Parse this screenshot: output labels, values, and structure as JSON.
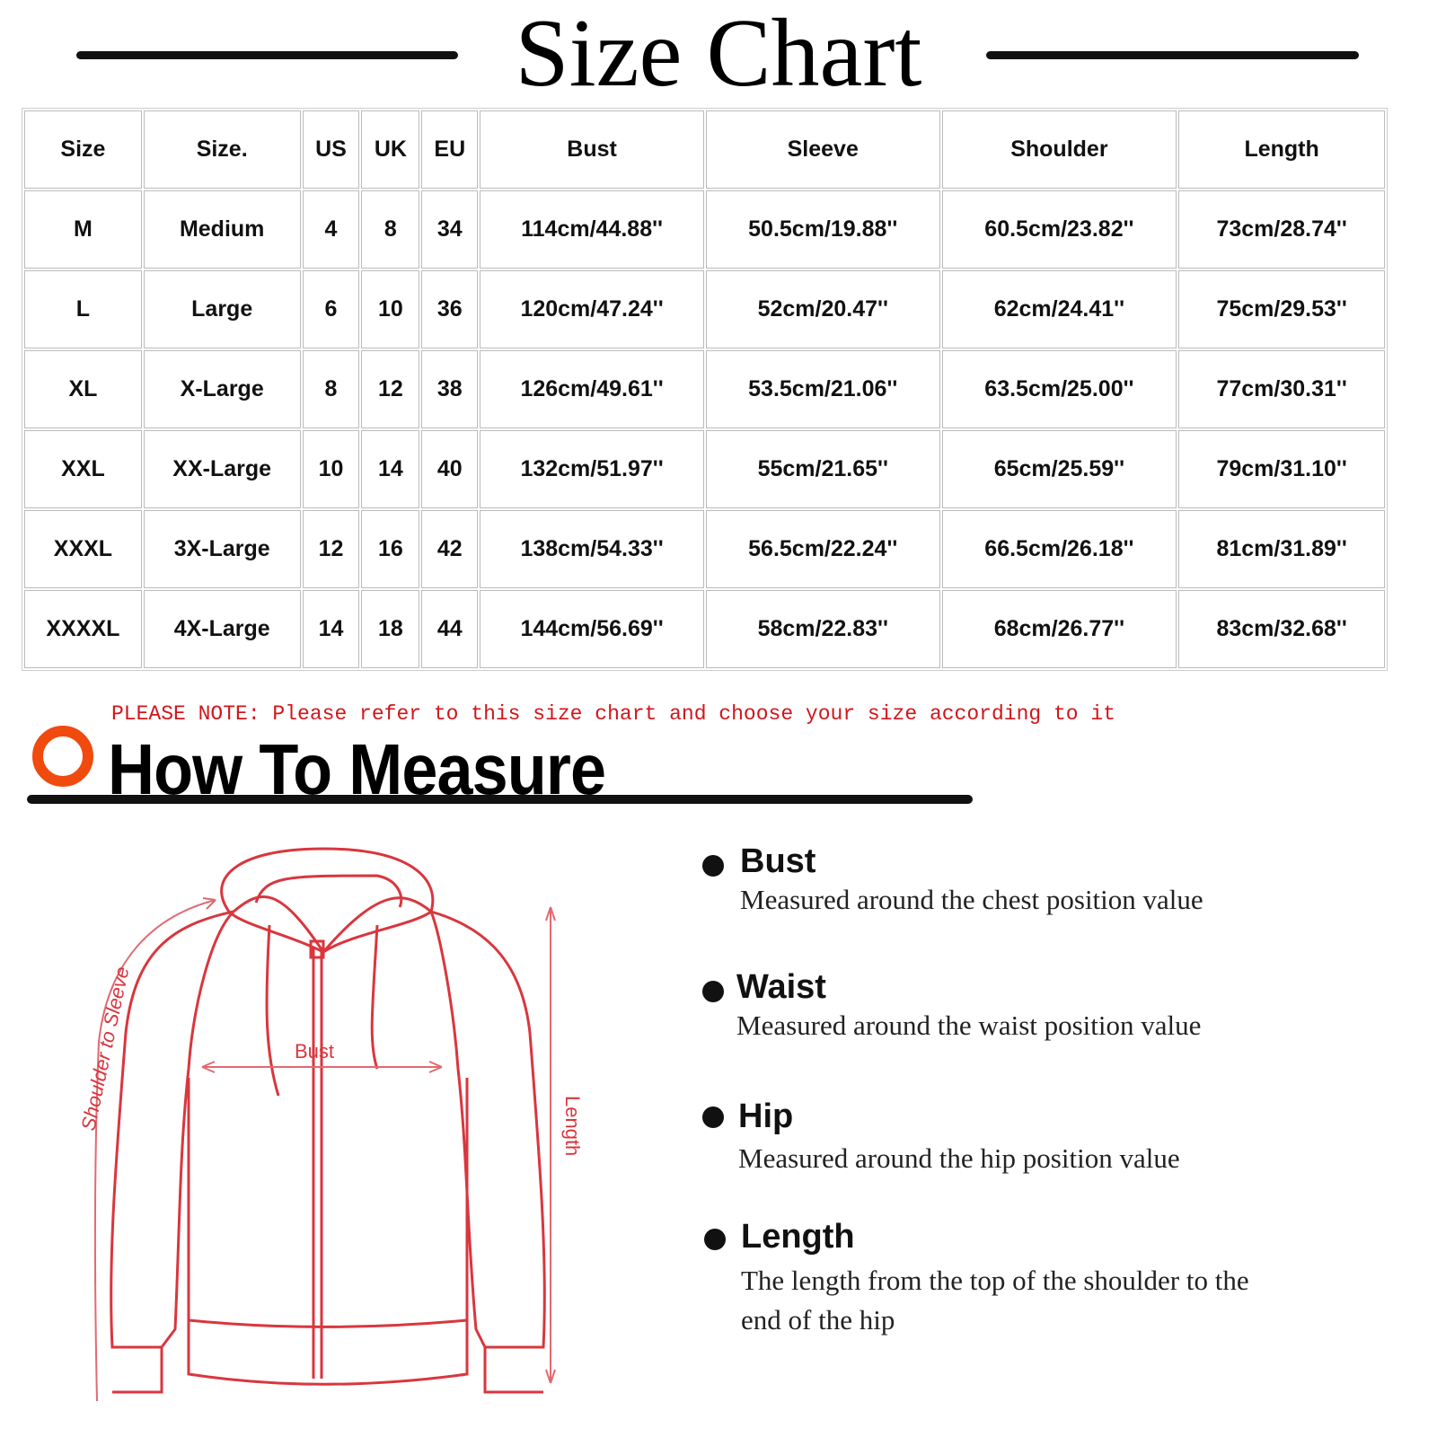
{
  "title": "Size Chart",
  "table": {
    "headers": [
      "Size",
      "Size.",
      "US",
      "UK",
      "EU",
      "Bust",
      "Sleeve",
      "Shoulder",
      "Length"
    ],
    "rows": [
      [
        "M",
        "Medium",
        "4",
        "8",
        "34",
        "114cm/44.88''",
        "50.5cm/19.88''",
        "60.5cm/23.82''",
        "73cm/28.74''"
      ],
      [
        "L",
        "Large",
        "6",
        "10",
        "36",
        "120cm/47.24''",
        "52cm/20.47''",
        "62cm/24.41''",
        "75cm/29.53''"
      ],
      [
        "XL",
        "X-Large",
        "8",
        "12",
        "38",
        "126cm/49.61''",
        "53.5cm/21.06''",
        "63.5cm/25.00''",
        "77cm/30.31''"
      ],
      [
        "XXL",
        "XX-Large",
        "10",
        "14",
        "40",
        "132cm/51.97''",
        "55cm/21.65''",
        "65cm/25.59''",
        "79cm/31.10''"
      ],
      [
        "XXXL",
        "3X-Large",
        "12",
        "16",
        "42",
        "138cm/54.33''",
        "56.5cm/22.24''",
        "66.5cm/26.18''",
        "81cm/31.89''"
      ],
      [
        "XXXXL",
        "4X-Large",
        "14",
        "18",
        "44",
        "144cm/56.69''",
        "58cm/22.83''",
        "68cm/26.77''",
        "83cm/32.68''"
      ]
    ]
  },
  "note": "PLEASE NOTE: Please refer to this size chart and choose your size according to it",
  "how_to_measure": {
    "title": "How To Measure",
    "diagram_labels": {
      "shoulder_to_sleeve": "Shoulder to Sleeve",
      "bust": "Bust",
      "length": "Length"
    },
    "items": [
      {
        "name": "Bust",
        "desc": "Measured around the chest position value"
      },
      {
        "name": "Waist",
        "desc": "Measured around the waist position value"
      },
      {
        "name": "Hip",
        "desc": "Measured around the  hip position value"
      },
      {
        "name": "Length",
        "desc": "The length from the top of the shoulder to the end of the hip"
      }
    ]
  },
  "colors": {
    "accent": "#f04a0f",
    "note": "#d0161b",
    "diagram": "#d9363e"
  }
}
